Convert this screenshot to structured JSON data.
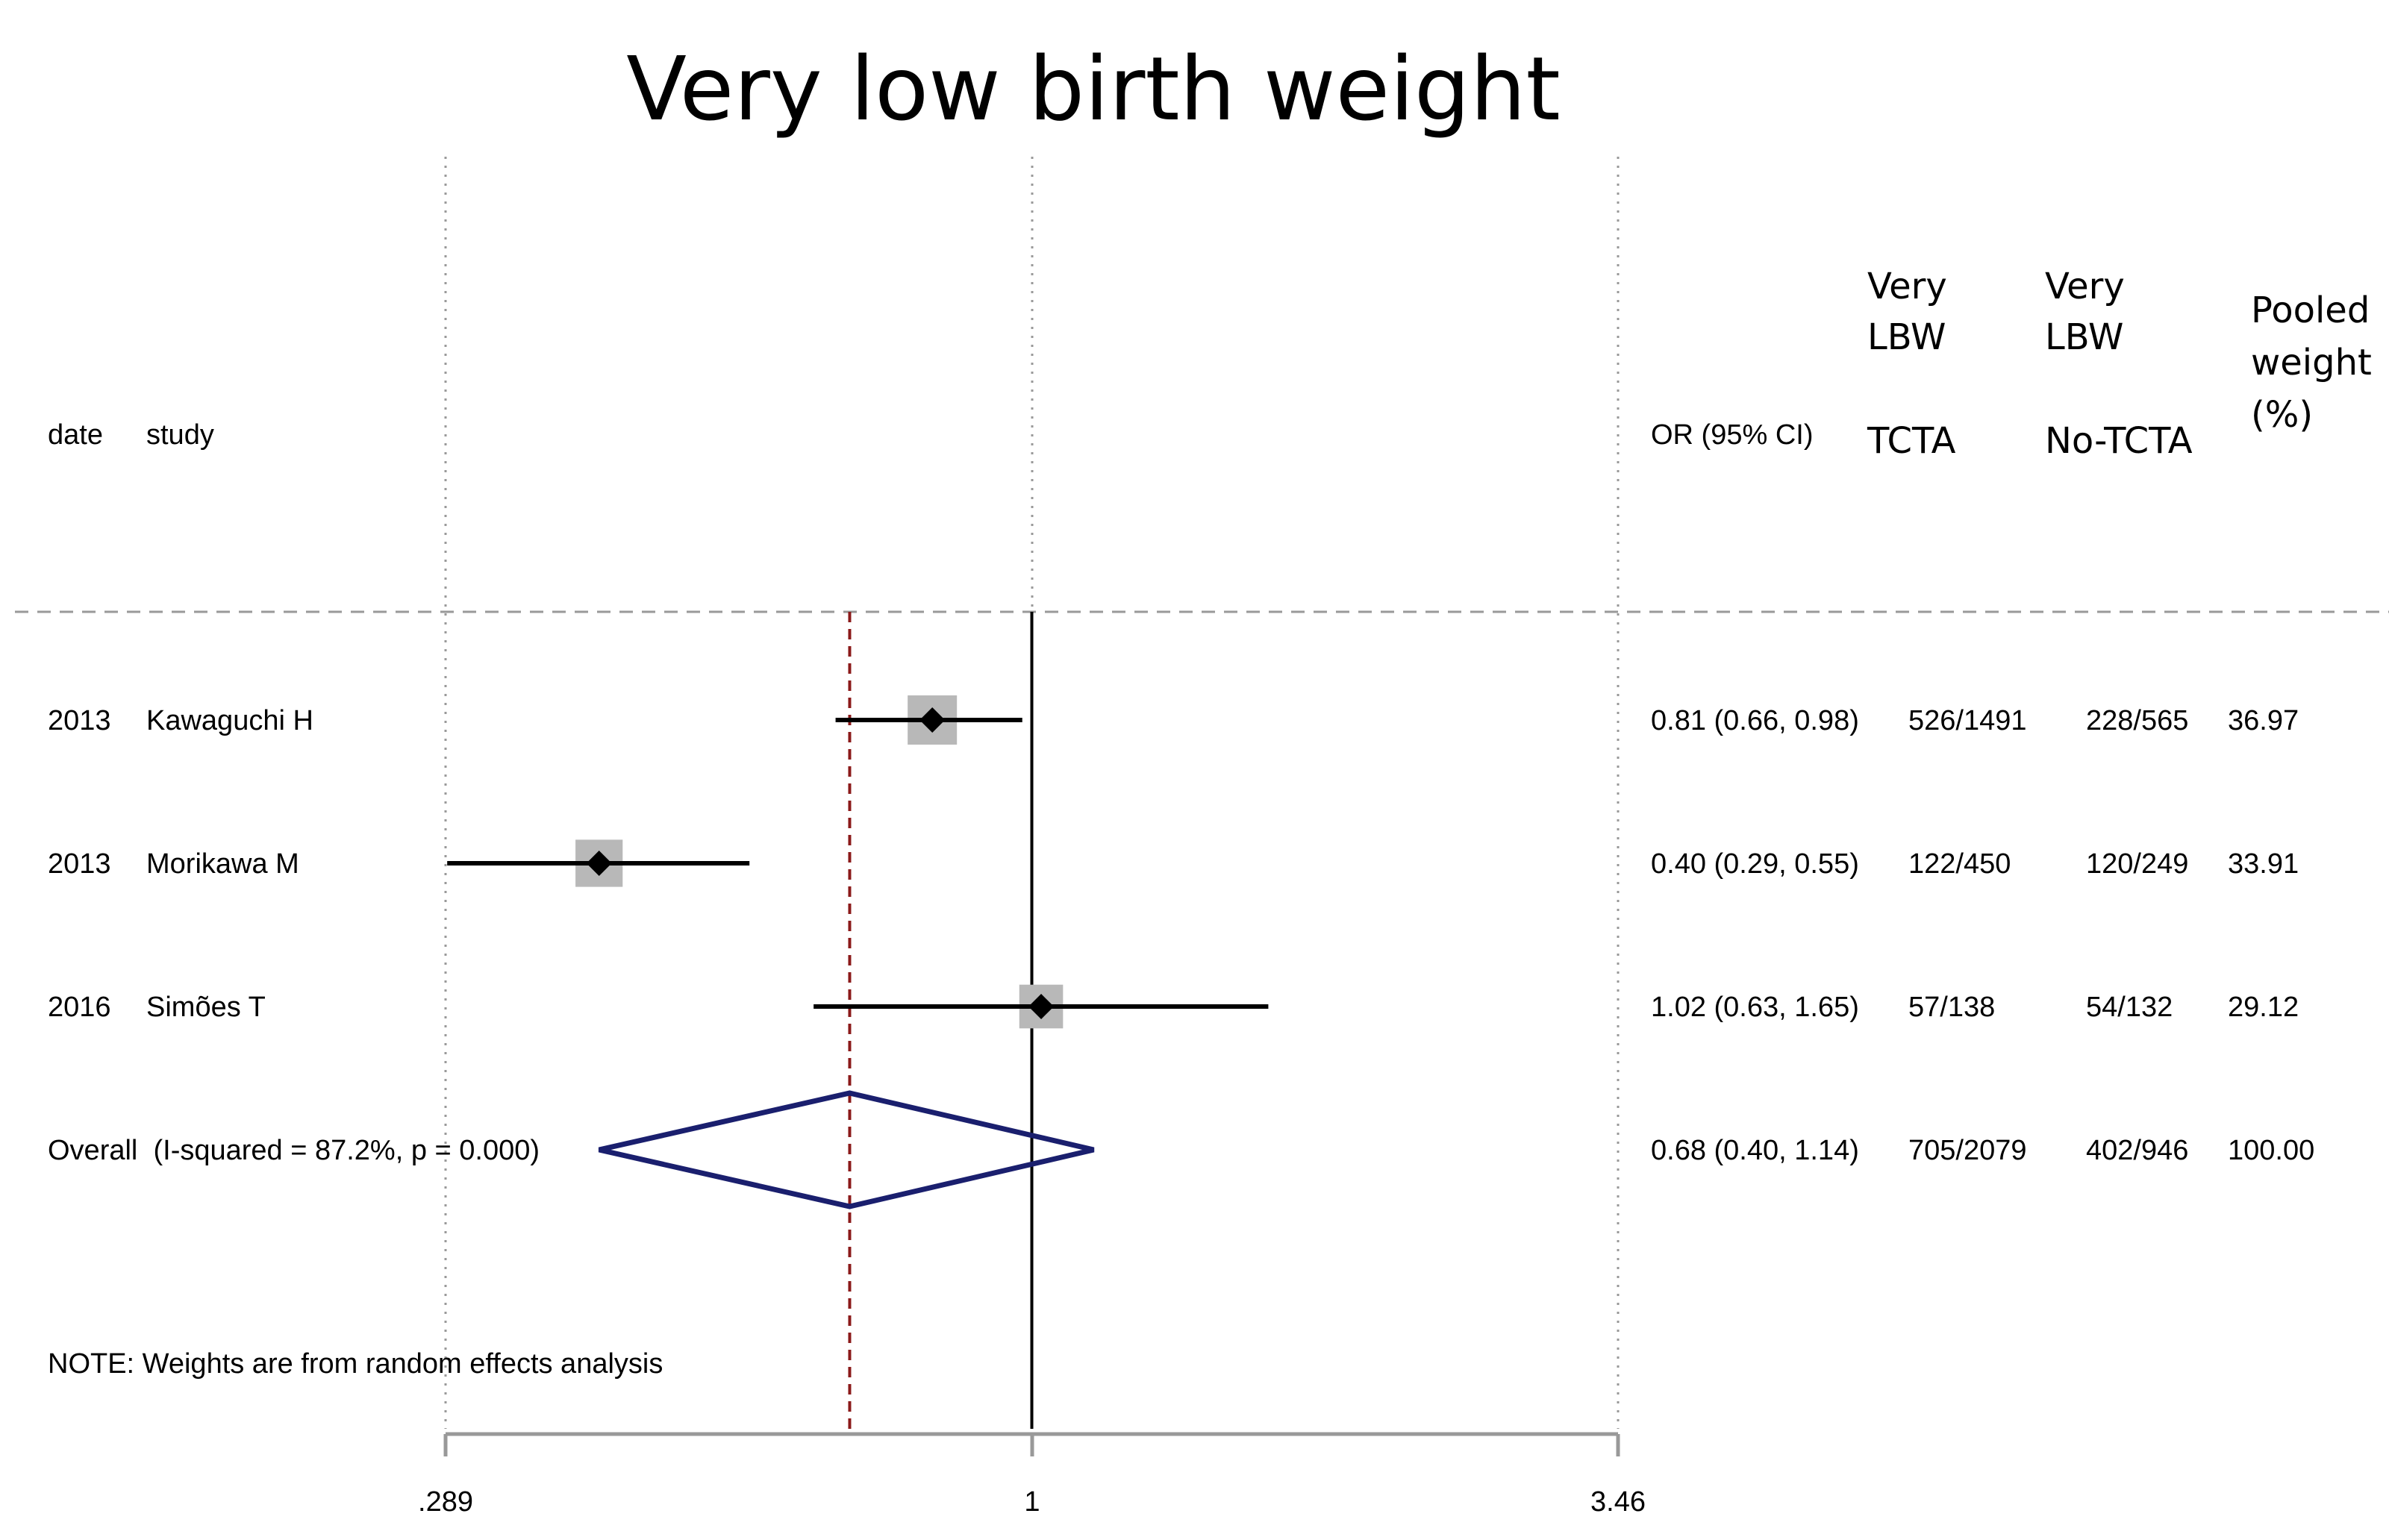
{
  "chart_data": {
    "type": "forest",
    "title": "Very low birth weight",
    "x_scale": "log",
    "xlim": [
      0.289,
      3.46
    ],
    "x_ticks": [
      ".289",
      "1",
      "3.46"
    ],
    "reference_line": 1,
    "overall_line": 0.68,
    "columns": {
      "date": "date",
      "study": "study",
      "or": "OR (95% CI)",
      "tcta": [
        "Very",
        "LBW",
        "TCTA"
      ],
      "no_tcta": [
        "Very",
        "LBW",
        "No-TCTA"
      ],
      "weight": [
        "Pooled",
        "weight",
        "(%)"
      ]
    },
    "studies": [
      {
        "date": "2013",
        "study": "Kawaguchi H",
        "or": 0.81,
        "lo": 0.66,
        "hi": 0.98,
        "or_text": "0.81 (0.66, 0.98)",
        "tcta": "526/1491",
        "no_tcta": "228/565",
        "weight": 36.97,
        "weight_text": "36.97"
      },
      {
        "date": "2013",
        "study": "Morikawa M",
        "or": 0.4,
        "lo": 0.29,
        "hi": 0.55,
        "or_text": "0.40 (0.29, 0.55)",
        "tcta": "122/450",
        "no_tcta": "120/249",
        "weight": 33.91,
        "weight_text": "33.91"
      },
      {
        "date": "2016",
        "study": "Simões T",
        "or": 1.02,
        "lo": 0.63,
        "hi": 1.65,
        "or_text": "1.02 (0.63, 1.65)",
        "tcta": "57/138",
        "no_tcta": "54/132",
        "weight": 29.12,
        "weight_text": "29.12"
      }
    ],
    "overall": {
      "label": "Overall  (I-squared = 87.2%, p = 0.000)",
      "or": 0.68,
      "lo": 0.4,
      "hi": 1.14,
      "or_text": "0.68 (0.40, 1.14)",
      "tcta": "705/2079",
      "no_tcta": "402/946",
      "weight_text": "100.00"
    },
    "note": "NOTE: Weights are from random effects analysis",
    "colors": {
      "overall_diamond": "#1a1f6e",
      "overall_line": "#8b1a1a",
      "weight_box": "#b8b8b8",
      "point": "#000000",
      "grid": "#999999"
    }
  }
}
